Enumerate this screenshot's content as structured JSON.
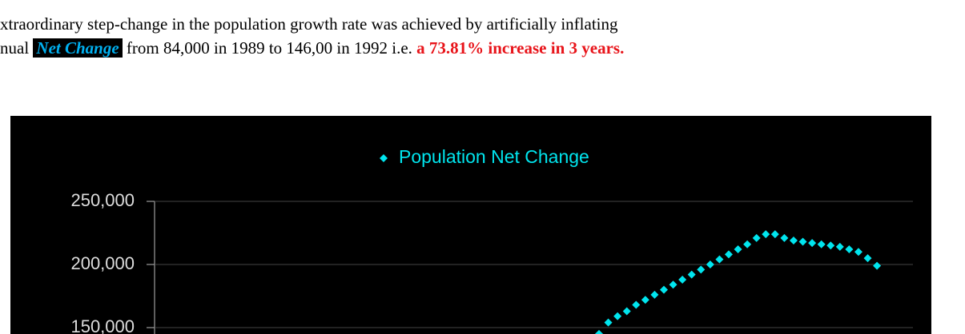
{
  "intro": {
    "line1": "xtraordinary step-change in the population growth rate was achieved by artificially inflating",
    "line2_start": "nual",
    "highlight": "Net Change",
    "line2_middle": "from 84,000 in 1989 to 146,00 in 1992 i.e.",
    "emphasis": "a 73.81% increase in 3 years."
  },
  "chart_data": {
    "type": "scatter",
    "title": "Population Net Change",
    "color": "#00e5ee",
    "categories": [
      null,
      null,
      null,
      null,
      null,
      null,
      null,
      null,
      null,
      null,
      null,
      null,
      null,
      null,
      null,
      null,
      null,
      null,
      null,
      null,
      null,
      null,
      null,
      null,
      null,
      null,
      null,
      null,
      null,
      null,
      null
    ],
    "values": [
      145000,
      154000,
      159000,
      163000,
      168000,
      172000,
      176000,
      180000,
      184000,
      188000,
      192000,
      196000,
      200000,
      204000,
      208000,
      212000,
      216000,
      221000,
      224000,
      224000,
      221000,
      219000,
      218000,
      217000,
      216000,
      215000,
      214000,
      212000,
      210000,
      205000,
      199000
    ],
    "ylim": [
      0,
      250000
    ],
    "yticks": [
      {
        "value": 150000,
        "label": "150,000"
      },
      {
        "value": 200000,
        "label": "200,000"
      },
      {
        "value": 250000,
        "label": "250,000"
      }
    ],
    "grid": true
  }
}
